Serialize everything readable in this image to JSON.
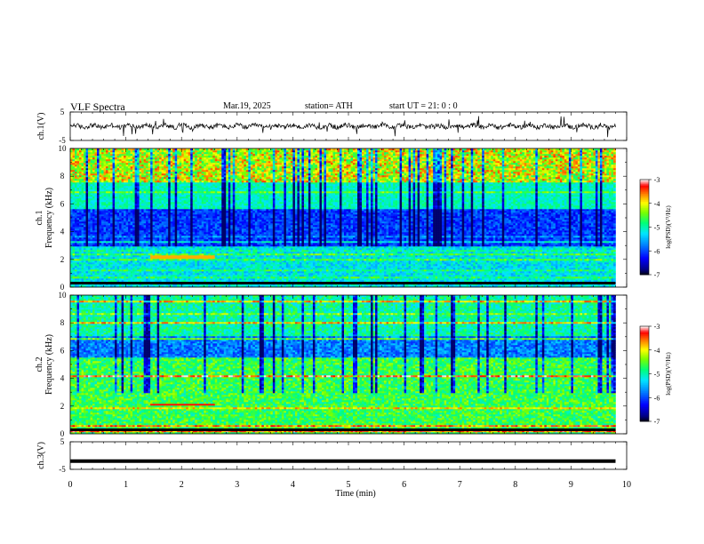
{
  "header": {
    "title": "VLF Spectra",
    "date": "Mar.19, 2025",
    "station": "station= ATH",
    "start": "start UT =   21: 0  : 0"
  },
  "chart_data": [
    {
      "type": "line",
      "title": "",
      "ylabel": "ch.1(V)",
      "ylim": [
        -5,
        5
      ],
      "yticks": [
        5,
        -5
      ],
      "xlim": [
        0,
        10
      ],
      "description_level_V": 0.0
    },
    {
      "type": "heatmap",
      "title": "",
      "ylabel": "ch.1\nFrequency (kHz)",
      "ylabel_lines": [
        "ch.1",
        "Frequency (kHz)"
      ],
      "ylim": [
        0,
        10
      ],
      "yticks": [
        0,
        2,
        4,
        6,
        8,
        10
      ],
      "xlim": [
        0,
        10
      ],
      "data_extent_min": 9.8,
      "colorbar": {
        "label": "log(PSD)(V²/Hz)",
        "range": [
          -7,
          -3
        ],
        "ticks": [
          -3,
          -4,
          -5,
          -6,
          -7
        ]
      }
    },
    {
      "type": "heatmap",
      "title": "",
      "ylabel": "ch.2\nFrequency (kHz)",
      "ylabel_lines": [
        "ch.2",
        "Frequency (kHz)"
      ],
      "ylim": [
        0,
        10
      ],
      "yticks": [
        0,
        2,
        4,
        6,
        8,
        10
      ],
      "xlim": [
        0,
        10
      ],
      "data_extent_min": 9.8,
      "colorbar": {
        "label": "log(PSD)(V²/Hz)",
        "range": [
          -7,
          -3
        ],
        "ticks": [
          -3,
          -4,
          -5,
          -6,
          -7
        ]
      }
    },
    {
      "type": "line",
      "title": "",
      "ylabel": "ch.3(V)",
      "ylim": [
        -5,
        5
      ],
      "yticks": [
        5,
        -5
      ],
      "xlim": [
        0,
        10
      ],
      "description_level_V": -2.0
    }
  ],
  "xaxis": {
    "label": "Time (min)",
    "ticks": [
      "0",
      "1",
      "2",
      "3",
      "4",
      "5",
      "6",
      "7",
      "8",
      "9",
      "10"
    ]
  },
  "colors": {
    "axis": "#000000",
    "background": "#ffffff"
  }
}
